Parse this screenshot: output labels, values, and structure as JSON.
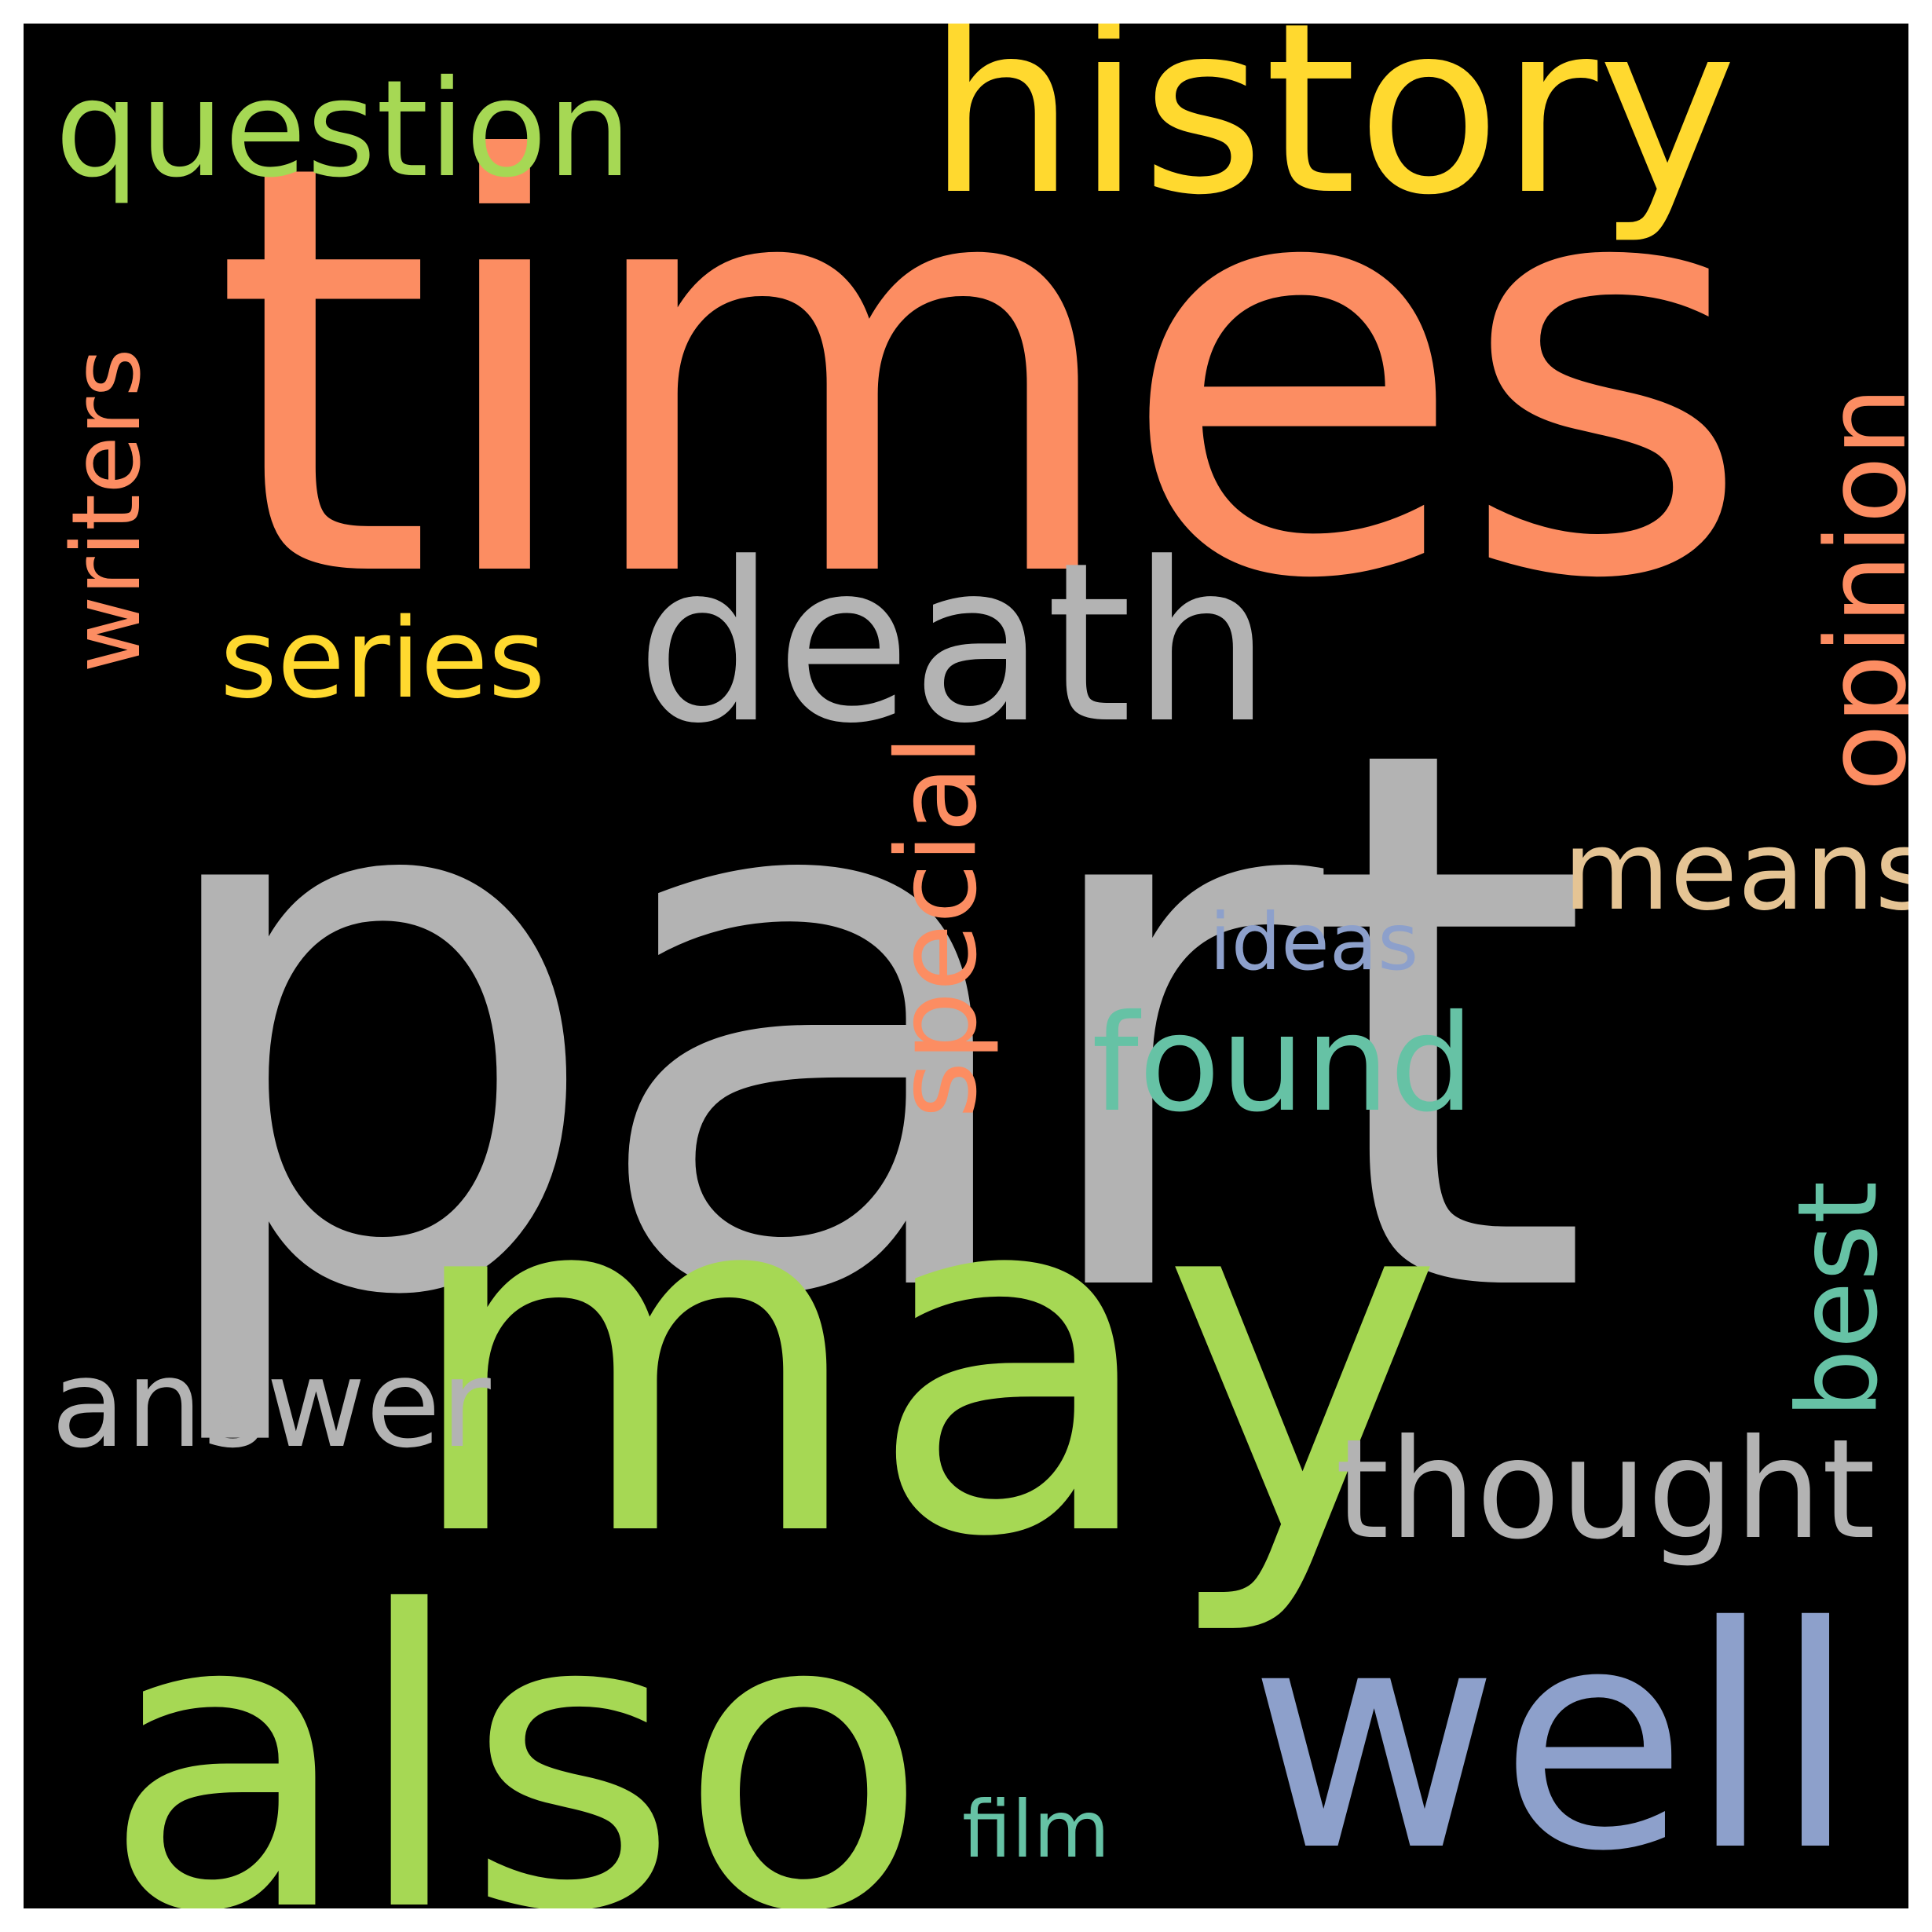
{
  "background_color": "#000000",
  "words": {
    "part": {
      "text": "part",
      "color": "#b3b3b3"
    },
    "times": {
      "text": "times",
      "color": "#fc8d62"
    },
    "may": {
      "text": "may",
      "color": "#a6d854"
    },
    "also": {
      "text": "also",
      "color": "#a6d854"
    },
    "history": {
      "text": "history",
      "color": "#ffd92f"
    },
    "death": {
      "text": "death",
      "color": "#b3b3b3"
    },
    "well": {
      "text": "well",
      "color": "#8da0cb"
    },
    "question": {
      "text": "question",
      "color": "#a6d854"
    },
    "series": {
      "text": "series",
      "color": "#ffd92f"
    },
    "writers": {
      "text": "writers",
      "color": "#fc8d62"
    },
    "opinion": {
      "text": "opinion",
      "color": "#fc8d62"
    },
    "means": {
      "text": "means",
      "color": "#e5c494"
    },
    "ideas": {
      "text": "ideas",
      "color": "#8da0cb"
    },
    "found": {
      "text": "found",
      "color": "#66c2a5"
    },
    "special": {
      "text": "special",
      "color": "#fc8d62"
    },
    "best": {
      "text": "best",
      "color": "#66c2a5"
    },
    "answer": {
      "text": "answer",
      "color": "#b3b3b3"
    },
    "thought": {
      "text": "thought",
      "color": "#b3b3b3"
    },
    "film": {
      "text": "film",
      "color": "#66c2a5"
    }
  }
}
